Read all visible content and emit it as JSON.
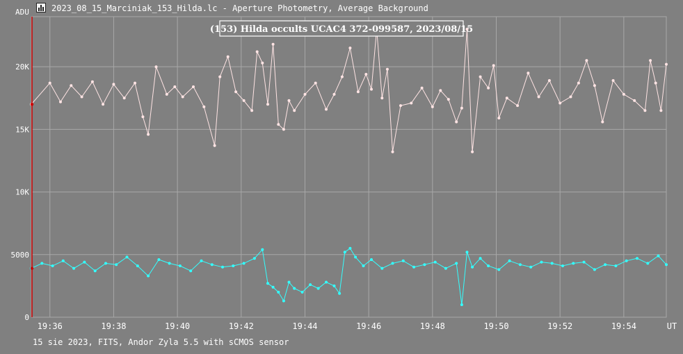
{
  "window": {
    "title": "2023_08_15_Marciniak_153_Hilda.lc - Aperture Photometry, Average Background",
    "icon": "lightcurve-app-icon"
  },
  "footer": {
    "info": "15 sie 2023, FITS, Andor Zyla 5.5 with sCMOS sensor"
  },
  "chart_data": {
    "type": "line",
    "title": "(153) Hilda occults UCAC4 372-099587, 2023/08/15",
    "ylabel": "ADU",
    "xlabel": "UT",
    "grid": true,
    "ylim": [
      0,
      24000
    ],
    "xlim": [
      "19:35:25",
      "19:55:20"
    ],
    "yticks": [
      {
        "v": 0,
        "label": "0"
      },
      {
        "v": 5000,
        "label": "5000"
      },
      {
        "v": 10000,
        "label": "10K"
      },
      {
        "v": 15000,
        "label": "15K"
      },
      {
        "v": 20000,
        "label": "20K"
      }
    ],
    "xticks": [
      {
        "t": "19:36",
        "label": "19:36"
      },
      {
        "t": "19:38",
        "label": "19:38"
      },
      {
        "t": "19:40",
        "label": "19:40"
      },
      {
        "t": "19:42",
        "label": "19:42"
      },
      {
        "t": "19:44",
        "label": "19:44"
      },
      {
        "t": "19:46",
        "label": "19:46"
      },
      {
        "t": "19:48",
        "label": "19:48"
      },
      {
        "t": "19:50",
        "label": "19:50"
      },
      {
        "t": "19:52",
        "label": "19:52"
      },
      {
        "t": "19:54",
        "label": "19:54"
      }
    ],
    "colors": {
      "background": "#808080",
      "grid": "#a8a8a8",
      "marker": "#cc0000"
    },
    "series": [
      {
        "color": "#ffe4e4",
        "x": [
          "19:35:25",
          "19:36:00",
          "19:36:20",
          "19:36:40",
          "19:37:00",
          "19:37:20",
          "19:37:40",
          "19:38:00",
          "19:38:20",
          "19:38:40",
          "19:38:55",
          "19:39:05",
          "19:39:20",
          "19:39:40",
          "19:39:55",
          "19:40:10",
          "19:40:30",
          "19:40:50",
          "19:41:10",
          "19:41:20",
          "19:41:35",
          "19:41:50",
          "19:42:05",
          "19:42:20",
          "19:42:30",
          "19:42:40",
          "19:42:50",
          "19:43:00",
          "19:43:10",
          "19:43:20",
          "19:43:30",
          "19:43:40",
          "19:44:00",
          "19:44:20",
          "19:44:40",
          "19:44:55",
          "19:45:10",
          "19:45:25",
          "19:45:40",
          "19:45:55",
          "19:46:05",
          "19:46:15",
          "19:46:25",
          "19:46:35",
          "19:46:45",
          "19:47:00",
          "19:47:20",
          "19:47:40",
          "19:48:00",
          "19:48:15",
          "19:48:30",
          "19:48:45",
          "19:48:55",
          "19:49:05",
          "19:49:15",
          "19:49:30",
          "19:49:45",
          "19:49:55",
          "19:50:05",
          "19:50:20",
          "19:50:40",
          "19:51:00",
          "19:51:20",
          "19:51:40",
          "19:52:00",
          "19:52:20",
          "19:52:35",
          "19:52:50",
          "19:53:05",
          "19:53:20",
          "19:53:40",
          "19:54:00",
          "19:54:20",
          "19:54:40",
          "19:54:50",
          "19:55:00",
          "19:55:10",
          "19:55:20"
        ],
        "values": [
          17000,
          18700,
          17200,
          18500,
          17600,
          18800,
          17000,
          18600,
          17500,
          18700,
          16000,
          14600,
          20000,
          17800,
          18400,
          17600,
          18400,
          16800,
          13700,
          19200,
          20800,
          18000,
          17300,
          16500,
          21200,
          20300,
          17000,
          21800,
          15400,
          15000,
          17300,
          16500,
          17800,
          18700,
          16600,
          17800,
          19200,
          21500,
          18000,
          19400,
          18200,
          23000,
          17500,
          19800,
          13200,
          16900,
          17100,
          18300,
          16800,
          18100,
          17400,
          15600,
          16700,
          23000,
          13200,
          19200,
          18300,
          20100,
          15900,
          17500,
          16900,
          19500,
          17600,
          18900,
          17100,
          17600,
          18700,
          20500,
          18500,
          15600,
          18900,
          17800,
          17300,
          16500,
          20500,
          18700,
          16500,
          20200
        ]
      },
      {
        "color": "#33ffff",
        "x": [
          "19:35:25",
          "19:35:45",
          "19:36:05",
          "19:36:25",
          "19:36:45",
          "19:37:05",
          "19:37:25",
          "19:37:45",
          "19:38:05",
          "19:38:25",
          "19:38:45",
          "19:39:05",
          "19:39:25",
          "19:39:45",
          "19:40:05",
          "19:40:25",
          "19:40:45",
          "19:41:05",
          "19:41:25",
          "19:41:45",
          "19:42:05",
          "19:42:25",
          "19:42:40",
          "19:42:50",
          "19:43:00",
          "19:43:10",
          "19:43:20",
          "19:43:30",
          "19:43:40",
          "19:43:55",
          "19:44:10",
          "19:44:25",
          "19:44:40",
          "19:44:55",
          "19:45:05",
          "19:45:15",
          "19:45:25",
          "19:45:35",
          "19:45:50",
          "19:46:05",
          "19:46:25",
          "19:46:45",
          "19:47:05",
          "19:47:25",
          "19:47:45",
          "19:48:05",
          "19:48:25",
          "19:48:45",
          "19:48:55",
          "19:49:05",
          "19:49:15",
          "19:49:30",
          "19:49:45",
          "19:50:05",
          "19:50:25",
          "19:50:45",
          "19:51:05",
          "19:51:25",
          "19:51:45",
          "19:52:05",
          "19:52:25",
          "19:52:45",
          "19:53:05",
          "19:53:25",
          "19:53:45",
          "19:54:05",
          "19:54:25",
          "19:54:45",
          "19:55:05",
          "19:55:20"
        ],
        "values": [
          3900,
          4300,
          4100,
          4500,
          3900,
          4400,
          3700,
          4300,
          4200,
          4800,
          4100,
          3300,
          4600,
          4300,
          4100,
          3700,
          4500,
          4200,
          4000,
          4100,
          4300,
          4700,
          5400,
          2700,
          2400,
          2000,
          1300,
          2800,
          2300,
          2000,
          2600,
          2300,
          2800,
          2500,
          1900,
          5200,
          5500,
          4800,
          4100,
          4600,
          3900,
          4300,
          4500,
          4000,
          4200,
          4400,
          3900,
          4300,
          1000,
          5200,
          4000,
          4700,
          4100,
          3800,
          4500,
          4200,
          4000,
          4400,
          4300,
          4100,
          4300,
          4400,
          3800,
          4200,
          4100,
          4500,
          4700,
          4300,
          4900,
          4200
        ]
      }
    ]
  }
}
